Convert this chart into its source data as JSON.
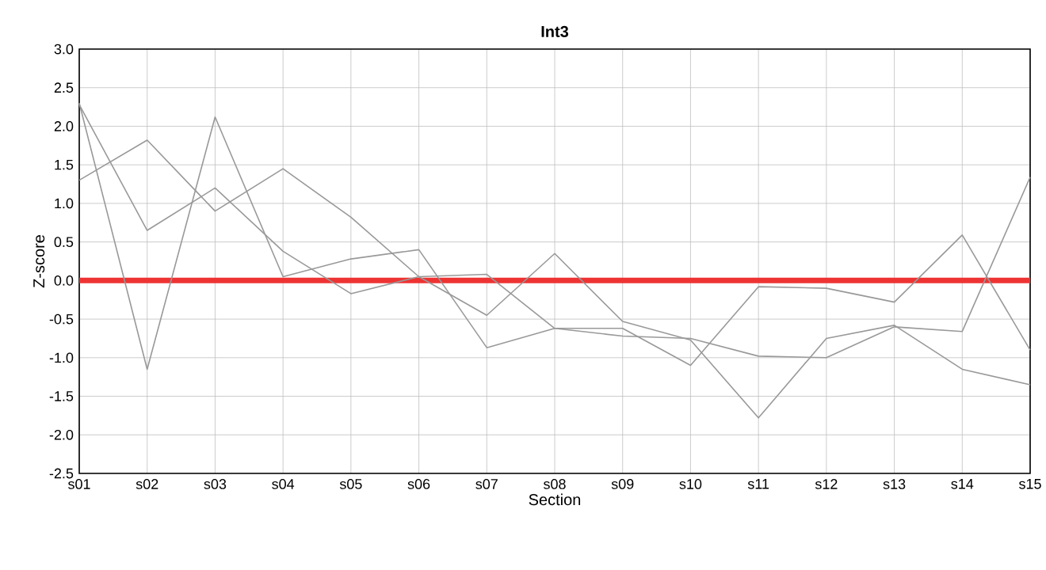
{
  "chart_data": {
    "type": "line",
    "title": "Int3",
    "xlabel": "Section",
    "ylabel": "Z-score",
    "categories": [
      "s01",
      "s02",
      "s03",
      "s04",
      "s05",
      "s06",
      "s07",
      "s08",
      "s09",
      "s10",
      "s11",
      "s12",
      "s13",
      "s14",
      "s15"
    ],
    "series": [
      {
        "color": "#999999",
        "values": [
          2.3,
          -1.15,
          2.12,
          0.05,
          0.28,
          0.4,
          -0.87,
          -0.62,
          -0.62,
          -1.1,
          -0.08,
          -0.1,
          -0.28,
          0.59,
          -0.9
        ]
      },
      {
        "color": "#999999",
        "values": [
          1.3,
          1.82,
          0.9,
          1.45,
          0.82,
          0.05,
          -0.45,
          0.35,
          -0.53,
          -0.77,
          -1.78,
          -0.75,
          -0.58,
          -1.15,
          -1.35
        ]
      },
      {
        "color": "#999999",
        "values": [
          2.28,
          0.65,
          1.2,
          0.38,
          -0.17,
          0.05,
          0.08,
          -0.62,
          -0.72,
          -0.75,
          -0.98,
          -1.0,
          -0.6,
          -0.66,
          1.34
        ]
      }
    ],
    "ylim": [
      -2.5,
      3.0
    ],
    "yticks": [
      {
        "value": -2.5,
        "label": "-2.5"
      },
      {
        "value": -2.0,
        "label": "-2.0"
      },
      {
        "value": -1.5,
        "label": "-1.5"
      },
      {
        "value": -1.0,
        "label": "-1.0"
      },
      {
        "value": -0.5,
        "label": "-0.5"
      },
      {
        "value": 0.0,
        "label": "0.0"
      },
      {
        "value": 0.5,
        "label": "0.5"
      },
      {
        "value": 1.0,
        "label": "1.0"
      },
      {
        "value": 1.5,
        "label": "1.5"
      },
      {
        "value": 2.0,
        "label": "2.0"
      },
      {
        "value": 2.5,
        "label": "2.5"
      },
      {
        "value": 3.0,
        "label": "3.0"
      }
    ],
    "ref_lines": [
      {
        "axis": "y",
        "value": 0,
        "color": "#ee3333"
      }
    ],
    "grid": true,
    "marker": "none",
    "line_style": "solid"
  }
}
